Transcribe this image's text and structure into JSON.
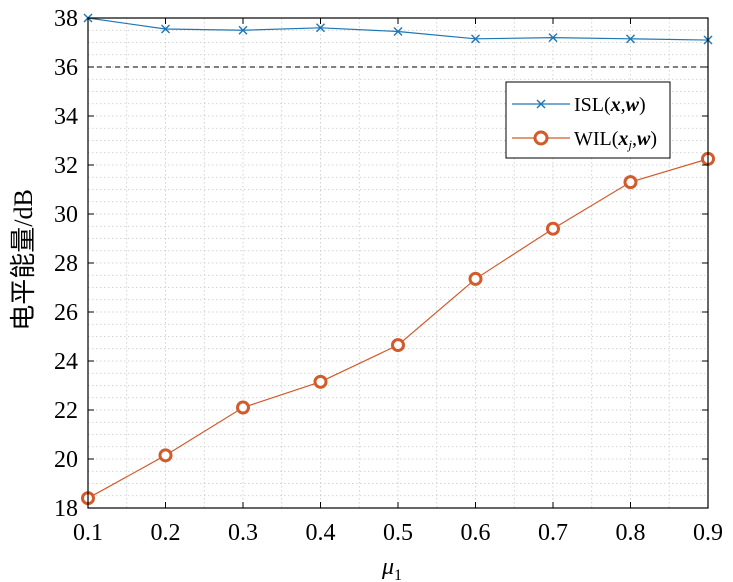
{
  "chart_data": {
    "type": "line",
    "x": [
      0.1,
      0.2,
      0.3,
      0.4,
      0.5,
      0.6,
      0.7,
      0.8,
      0.9
    ],
    "xlim": [
      0.1,
      0.9
    ],
    "ylim": [
      18,
      38
    ],
    "xticks": [
      "0.1",
      "0.2",
      "0.3",
      "0.4",
      "0.5",
      "0.6",
      "0.7",
      "0.8",
      "0.9"
    ],
    "yticks": [
      "18",
      "20",
      "22",
      "24",
      "26",
      "28",
      "30",
      "32",
      "34",
      "36",
      "38"
    ],
    "xlabel": "μ",
    "xlabel_sub": "1",
    "ylabel": "电平能量/dB",
    "grid": true,
    "legend_position": "upper-right",
    "series": [
      {
        "name": "ISL(x,w)",
        "name_prefix": "ISL(",
        "name_var1": "x",
        "name_var1_sub": "",
        "name_sep": ",",
        "name_var2": "w",
        "name_suffix": ")",
        "marker": "x",
        "color": "#1f77b4",
        "values": [
          38.0,
          37.55,
          37.5,
          37.6,
          37.45,
          37.15,
          37.2,
          37.15,
          37.1
        ]
      },
      {
        "name": "WIL(xj,w)",
        "name_prefix": "WIL(",
        "name_var1": "x",
        "name_var1_sub": "j",
        "name_sep": ",",
        "name_var2": "w",
        "name_suffix": ")",
        "marker": "circle",
        "color": "#d35a2a",
        "values": [
          18.4,
          20.15,
          22.1,
          23.15,
          24.65,
          27.35,
          29.4,
          31.3,
          32.25
        ]
      }
    ]
  }
}
